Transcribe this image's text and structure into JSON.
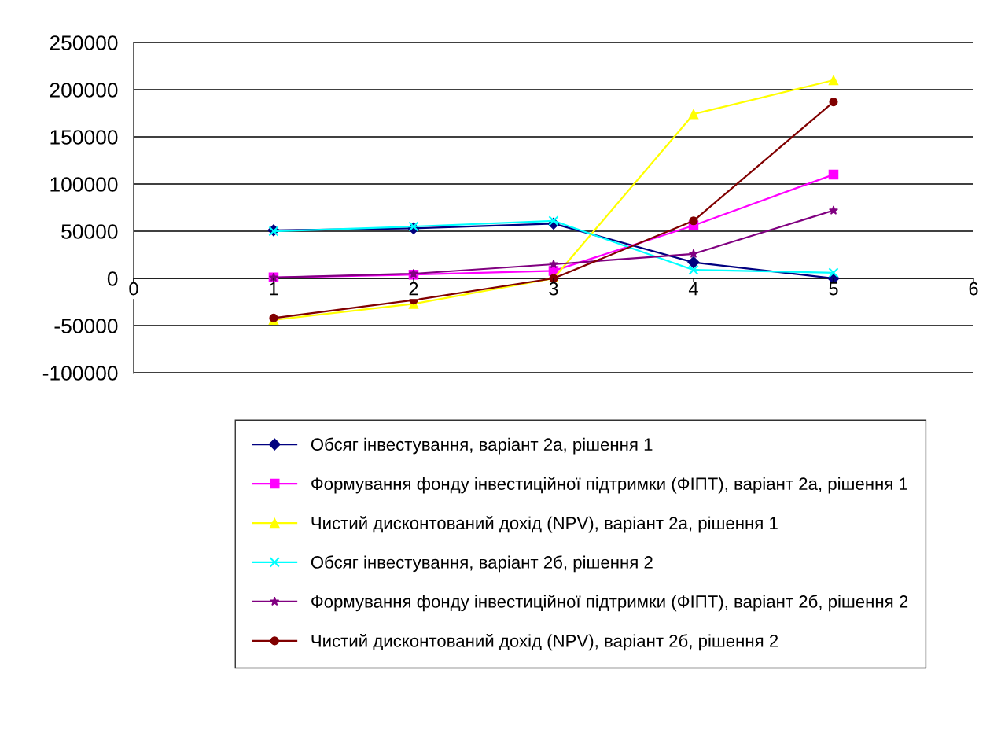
{
  "chart_data": {
    "type": "line",
    "x": [
      1,
      2,
      3,
      4,
      5
    ],
    "xlim": [
      0,
      6
    ],
    "xticks": [
      0,
      1,
      2,
      3,
      4,
      5,
      6
    ],
    "ylim": [
      -100000,
      250000
    ],
    "yticks": [
      -100000,
      -50000,
      0,
      50000,
      100000,
      150000,
      200000,
      250000
    ],
    "grid": "y",
    "legend": "bottom",
    "line_style": "solid",
    "series": [
      {
        "name": "Обсяг інвестування, варіант 2а, рішення 1",
        "color": "#000080",
        "marker": "diamond",
        "values": [
          51000,
          53000,
          58000,
          17000,
          0
        ]
      },
      {
        "name": "Формування фонду інвестиційної підтримки (ФІПТ), варіант 2а, рішення 1",
        "color": "#ff00ff",
        "marker": "square",
        "values": [
          1000,
          4000,
          8000,
          56000,
          110000
        ]
      },
      {
        "name": "Чистий дисконтований дохід (NPV), варіант 2а, рішення 1",
        "color": "#ffff00",
        "marker": "triangle",
        "values": [
          -44000,
          -27000,
          0,
          174000,
          210000
        ]
      },
      {
        "name": "Обсяг інвестування, варіант 2б, рішення 2",
        "color": "#00ffff",
        "marker": "cross",
        "values": [
          50000,
          55000,
          61000,
          9000,
          6000
        ]
      },
      {
        "name": "Формування фонду інвестиційної підтримки (ФІПТ), варіант 2б, рішення 2",
        "color": "#800080",
        "marker": "star",
        "values": [
          1000,
          5000,
          15000,
          26000,
          72000
        ]
      },
      {
        "name": "Чистий дисконтований дохід (NPV), варіант 2б, рішення 2",
        "color": "#800000",
        "marker": "circle",
        "values": [
          -42000,
          -23000,
          0,
          61000,
          187000
        ]
      }
    ]
  }
}
